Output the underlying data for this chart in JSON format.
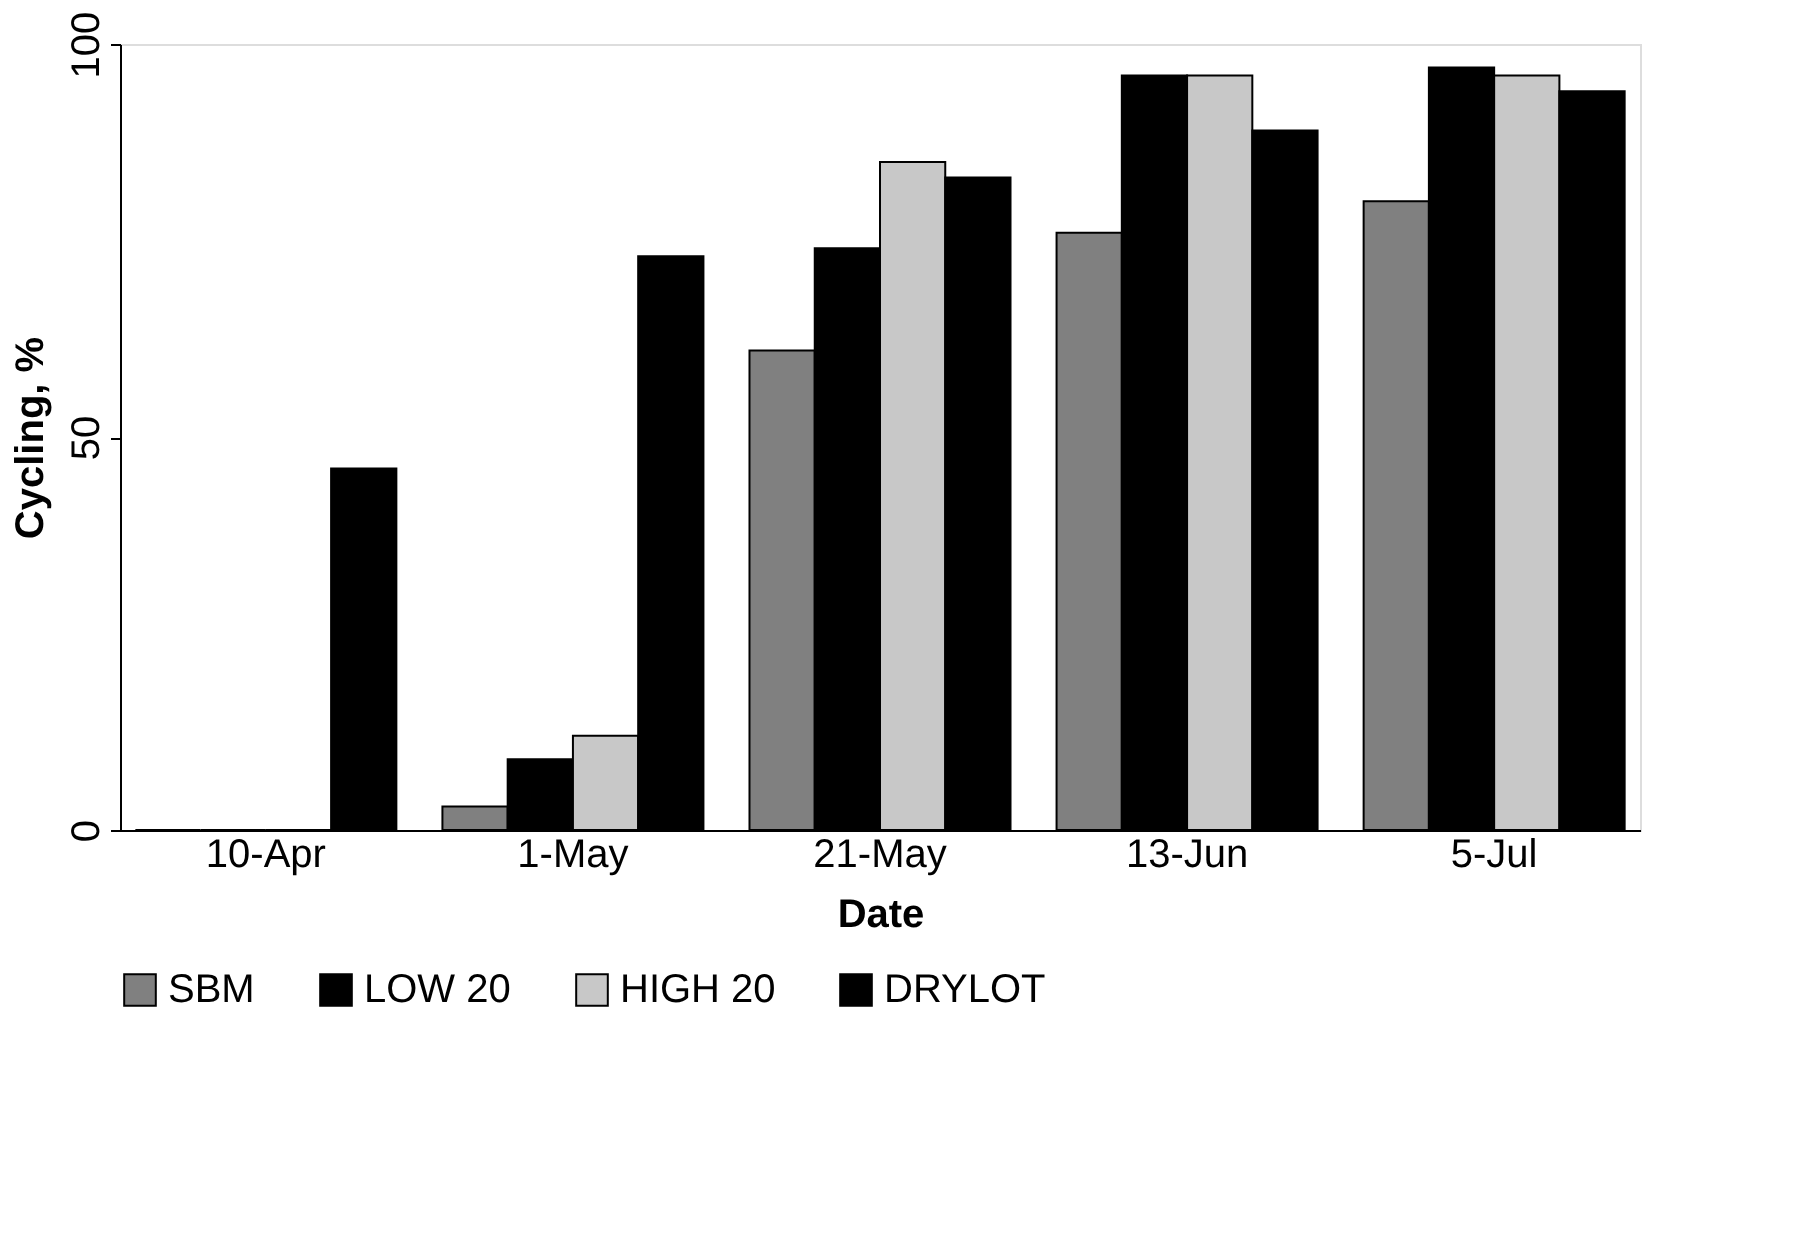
{
  "chart_data": {
    "type": "bar",
    "xlabel": "Date",
    "ylabel": "Cycling, %",
    "categories": [
      "10-Apr",
      "1-May",
      "21-May",
      "13-Jun",
      "5-Jul"
    ],
    "series": [
      {
        "name": "SBM",
        "color": "#808080",
        "values": [
          0,
          3,
          61,
          76,
          80
        ]
      },
      {
        "name": "LOW 20",
        "color": "#000000",
        "values": [
          0,
          9,
          74,
          96,
          97
        ]
      },
      {
        "name": "HIGH 20",
        "color": "#c8c8c8",
        "values": [
          0,
          12,
          85,
          96,
          96
        ]
      },
      {
        "name": "DRYLOT",
        "color": "#000000",
        "values": [
          46,
          73,
          83,
          89,
          94
        ]
      }
    ],
    "ylim": [
      0,
      100
    ],
    "yticks": [
      0,
      50,
      100
    ],
    "grid": false,
    "legend": "bottom"
  }
}
